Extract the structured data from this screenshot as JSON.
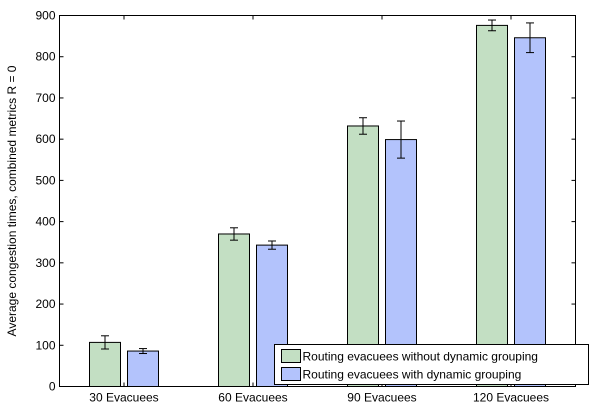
{
  "chart_data": {
    "type": "bar",
    "categories": [
      "30 Evacuees",
      "60 Evacuees",
      "90 Evacuees",
      "120 Evacuees"
    ],
    "series": [
      {
        "name": "Routing evacuees without dynamic grouping",
        "color": "#c3dfc3",
        "values": [
          107,
          370,
          632,
          876
        ],
        "errors": [
          16,
          15,
          20,
          13
        ]
      },
      {
        "name": "Routing evacuees with dynamic grouping",
        "color": "#b3c3fc",
        "values": [
          86,
          343,
          599,
          846
        ],
        "errors": [
          6,
          10,
          45,
          36
        ]
      }
    ],
    "title": "",
    "xlabel": "",
    "ylabel": "Average congestion times, combined metrics R = 0",
    "ylim": [
      0,
      900
    ],
    "yticks": [
      0,
      100,
      200,
      300,
      400,
      500,
      600,
      700,
      800,
      900
    ],
    "grid": false,
    "legend_position": "bottom-right"
  }
}
